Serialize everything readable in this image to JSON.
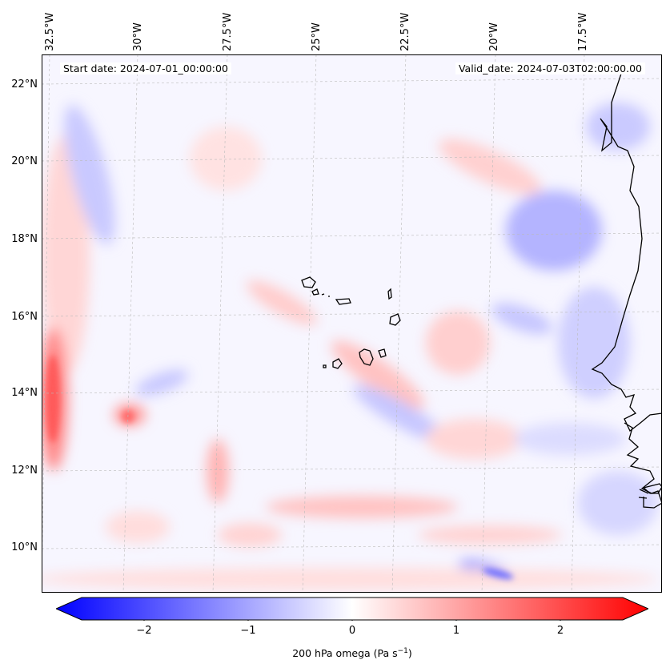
{
  "map": {
    "start_date_text": "Start date: 2024-07-01_00:00:00",
    "valid_date_text": "Valid_date: 2024-07-03T02:00:00.00",
    "lon_labels": [
      "32.5°W",
      "30°W",
      "27.5°W",
      "25°W",
      "22.5°W",
      "20°W",
      "17.5°W"
    ],
    "lat_labels": [
      "22°N",
      "20°N",
      "18°N",
      "16°N",
      "14°N",
      "12°N",
      "10°N"
    ],
    "gridlines": true,
    "field_colors": {
      "negative": "#0000ff",
      "zero": "#ffffff",
      "positive": "#ff0000"
    }
  },
  "colorbar": {
    "ticks": [
      "−2",
      "−1",
      "0",
      "1",
      "2"
    ],
    "range": [
      -2.6,
      2.6
    ],
    "label_main": "200 hPa omega (Pa s",
    "label_sup": "−1",
    "label_end": ")"
  }
}
